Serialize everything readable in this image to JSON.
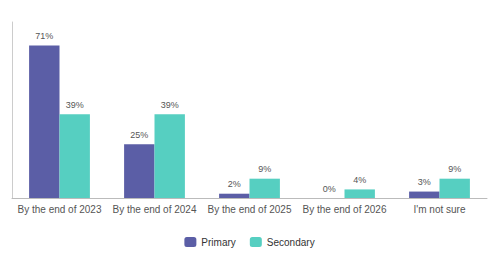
{
  "chart_data": {
    "type": "bar",
    "categories": [
      "By the end of 2023",
      "By the end of 2024",
      "By the end of 2025",
      "By the end of 2026",
      "I'm not sure"
    ],
    "series": [
      {
        "name": "Primary",
        "color": "#5b5ea6",
        "values": [
          71,
          25,
          2,
          0,
          3
        ],
        "value_labels": [
          "71%",
          "25%",
          "2%",
          "0%",
          "3%"
        ]
      },
      {
        "name": "Secondary",
        "color": "#56cfc1",
        "values": [
          39,
          39,
          9,
          4,
          9
        ],
        "value_labels": [
          "39%",
          "39%",
          "9%",
          "4%",
          "9%"
        ]
      }
    ],
    "ylim": [
      0,
      82
    ],
    "yticks": [],
    "grid": false,
    "legend": "bottom",
    "data_labels": true,
    "tick_labels": "x"
  }
}
